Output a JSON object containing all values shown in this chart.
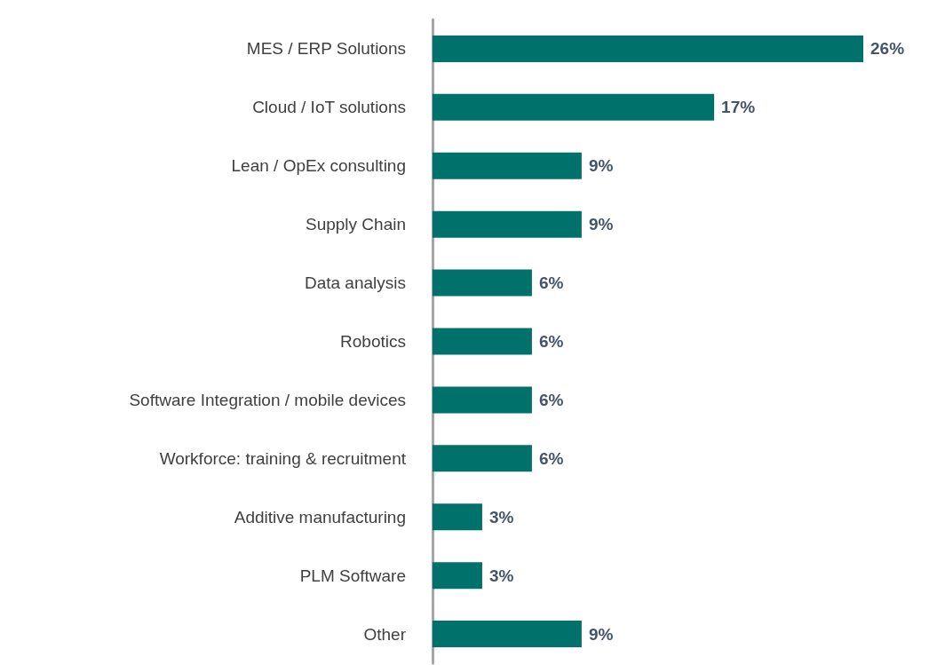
{
  "chart_data": {
    "type": "bar",
    "orientation": "horizontal",
    "categories": [
      "MES / ERP Solutions",
      "Cloud / IoT solutions",
      "Lean / OpEx consulting",
      "Supply Chain",
      "Data analysis",
      "Robotics",
      "Software Integration / mobile devices",
      "Workforce: training & recruitment",
      "Additive manufacturing",
      "PLM Software",
      "Other"
    ],
    "values": [
      26,
      17,
      9,
      9,
      6,
      6,
      6,
      6,
      3,
      3,
      9
    ],
    "value_labels": [
      "26%",
      "17%",
      "9%",
      "9%",
      "6%",
      "6%",
      "6%",
      "6%",
      "3%",
      "3%",
      "9%"
    ],
    "color": "#00716b"
  }
}
